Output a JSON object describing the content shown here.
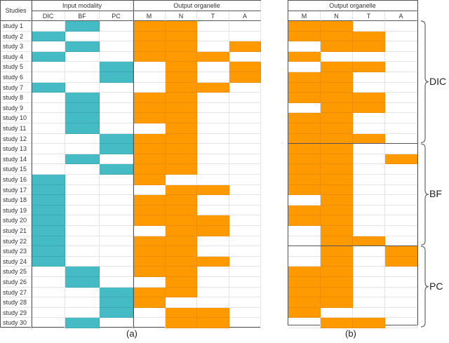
{
  "left_table": {
    "header_studies": "Studies",
    "group_input": "Input modality",
    "group_output": "Output organelle",
    "input_cols": [
      "DIC",
      "BF",
      "PC"
    ],
    "output_cols": [
      "M",
      "N",
      "T",
      "A"
    ],
    "rows": [
      {
        "name": "study 1",
        "input": "BF",
        "output": "1100"
      },
      {
        "name": "study 2",
        "input": "DIC",
        "output": "1100"
      },
      {
        "name": "study 3",
        "input": "BF",
        "output": "1101"
      },
      {
        "name": "study 4",
        "input": "DIC",
        "output": "1110"
      },
      {
        "name": "study 5",
        "input": "PC",
        "output": "0101"
      },
      {
        "name": "study 6",
        "input": "PC",
        "output": "0101"
      },
      {
        "name": "study 7",
        "input": "DIC",
        "output": "0110"
      },
      {
        "name": "study 8",
        "input": "BF",
        "output": "1100"
      },
      {
        "name": "study 9",
        "input": "BF",
        "output": "1100"
      },
      {
        "name": "study 10",
        "input": "BF",
        "output": "1100"
      },
      {
        "name": "study 11",
        "input": "BF",
        "output": "0100"
      },
      {
        "name": "study 12",
        "input": "PC",
        "output": "1100"
      },
      {
        "name": "study 13",
        "input": "PC",
        "output": "1100"
      },
      {
        "name": "study 14",
        "input": "BF",
        "output": "1100"
      },
      {
        "name": "study 15",
        "input": "PC",
        "output": "1100"
      },
      {
        "name": "study 16",
        "input": "DIC",
        "output": "1000"
      },
      {
        "name": "study 17",
        "input": "DIC",
        "output": "0110"
      },
      {
        "name": "study 18",
        "input": "DIC",
        "output": "1100"
      },
      {
        "name": "study 19",
        "input": "DIC",
        "output": "1100"
      },
      {
        "name": "study 20",
        "input": "DIC",
        "output": "1110"
      },
      {
        "name": "study 21",
        "input": "DIC",
        "output": "0110"
      },
      {
        "name": "study 22",
        "input": "DIC",
        "output": "1100"
      },
      {
        "name": "study 23",
        "input": "DIC",
        "output": "1100"
      },
      {
        "name": "study 24",
        "input": "DIC",
        "output": "1110"
      },
      {
        "name": "study 25",
        "input": "BF",
        "output": "1100"
      },
      {
        "name": "study 26",
        "input": "BF",
        "output": "0100"
      },
      {
        "name": "study 27",
        "input": "PC",
        "output": "1100"
      },
      {
        "name": "study 28",
        "input": "PC",
        "output": "1000"
      },
      {
        "name": "study 29",
        "input": "PC",
        "output": "0110"
      },
      {
        "name": "study 30",
        "input": "BF",
        "output": "0110"
      }
    ],
    "caption": "(a)"
  },
  "right_table": {
    "group_output": "Output organelle",
    "output_cols": [
      "M",
      "N",
      "T",
      "A"
    ],
    "groups": [
      {
        "label": "DIC",
        "rows": [
          "1100",
          "1110",
          "0110",
          "1000",
          "0110",
          "1100",
          "1100",
          "1110",
          "0110",
          "1100",
          "1100",
          "1110"
        ]
      },
      {
        "label": "BF",
        "rows": [
          "1100",
          "1101",
          "1100",
          "1100",
          "1100",
          "0100",
          "1100",
          "1100",
          "0100",
          "0110"
        ]
      },
      {
        "label": "PC",
        "rows": [
          "0101",
          "0101",
          "1100",
          "1100",
          "1100",
          "1100",
          "1000",
          "0110"
        ]
      }
    ],
    "caption": "(b)"
  },
  "colors": {
    "input": "#45bbc5",
    "output": "#fe9900"
  }
}
